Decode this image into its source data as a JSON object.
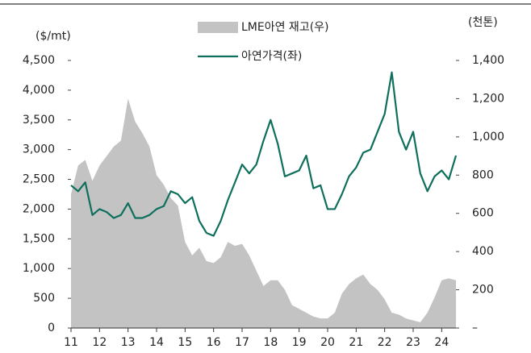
{
  "chart_data": {
    "type": "area-line",
    "y_label": "($/mt)",
    "y2_label": "(천톤)",
    "x": [
      11,
      11.25,
      11.5,
      11.75,
      12,
      12.25,
      12.5,
      12.75,
      13,
      13.25,
      13.5,
      13.75,
      14,
      14.25,
      14.5,
      14.75,
      15,
      15.25,
      15.5,
      15.75,
      16,
      16.25,
      16.5,
      16.75,
      17,
      17.25,
      17.5,
      17.75,
      18,
      18.25,
      18.5,
      18.75,
      19,
      19.25,
      19.5,
      19.75,
      20,
      20.25,
      20.5,
      20.75,
      21,
      21.25,
      21.5,
      21.75,
      22,
      22.25,
      22.5,
      22.75,
      23,
      23.25,
      23.5,
      23.75,
      24,
      24.25,
      24.5
    ],
    "series": [
      {
        "name": "LME아연 재고(우)",
        "color": "#c3c3c3",
        "axis": "y2",
        "kind": "area",
        "values": [
          700,
          850,
          880,
          770,
          850,
          900,
          950,
          980,
          1200,
          1080,
          1020,
          950,
          800,
          750,
          680,
          640,
          450,
          380,
          420,
          350,
          340,
          370,
          450,
          430,
          440,
          380,
          300,
          220,
          250,
          250,
          200,
          120,
          100,
          80,
          60,
          50,
          50,
          80,
          180,
          230,
          260,
          280,
          230,
          200,
          150,
          80,
          70,
          50,
          40,
          30,
          80,
          160,
          250,
          260,
          250
        ]
      },
      {
        "name": "아연가격(좌)",
        "color": "#0e6f5c",
        "axis": "y",
        "kind": "line",
        "values": [
          2400,
          2300,
          2450,
          1900,
          2000,
          1950,
          1850,
          1900,
          2100,
          1850,
          1850,
          1900,
          2000,
          2050,
          2300,
          2250,
          2100,
          2200,
          1800,
          1600,
          1550,
          1800,
          2150,
          2450,
          2750,
          2600,
          2750,
          3150,
          3500,
          3100,
          2550,
          2600,
          2650,
          2900,
          2350,
          2400,
          2000,
          2000,
          2250,
          2550,
          2700,
          2950,
          3000,
          3300,
          3600,
          4300,
          3300,
          3000,
          3300,
          2600,
          2300,
          2550,
          2650,
          2500,
          2900
        ]
      }
    ],
    "xlim": [
      11,
      24.5
    ],
    "xticks": [
      11,
      12,
      13,
      14,
      15,
      16,
      17,
      18,
      19,
      20,
      21,
      22,
      23,
      24
    ],
    "ylim": [
      0,
      4500
    ],
    "yticks": [
      0,
      500,
      {
        "value": 1000,
        "label": "1,000"
      },
      {
        "value": 1500,
        "label": "1,500"
      },
      {
        "value": 2000,
        "label": "2,000"
      },
      {
        "value": 2500,
        "label": "2,500"
      },
      {
        "value": 3000,
        "label": "3,000"
      },
      {
        "value": 3500,
        "label": "3,500"
      },
      {
        "value": 4000,
        "label": "4,000"
      },
      {
        "value": 4500,
        "label": "4,500"
      }
    ],
    "y2lim": [
      0,
      1400
    ],
    "y2ticks": [
      {
        "value": 0,
        "label": "–"
      },
      200,
      400,
      600,
      800,
      {
        "value": 1000,
        "label": "1,000"
      },
      {
        "value": 1200,
        "label": "1,200"
      },
      {
        "value": 1400,
        "label": "1,400"
      }
    ],
    "legend": "top"
  }
}
